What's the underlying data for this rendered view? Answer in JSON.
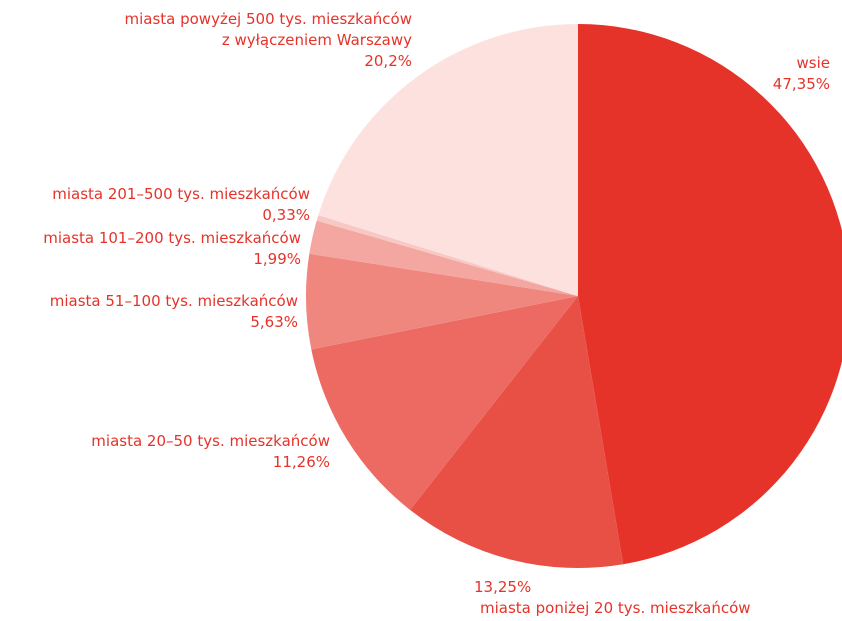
{
  "chart_data": {
    "type": "pie",
    "categories": [
      "wsie",
      "miasta poniżej 20 tys. mieszkańców",
      "miasta 20–50 tys. mieszkańców",
      "miasta 51–100 tys. mieszkańców",
      "miasta 101–200 tys. mieszkańców",
      "miasta 201–500 tys. mieszkańców",
      "miasta powyżej 500 tys. mieszkańców\nz wyłączeniem Warszawy"
    ],
    "values": [
      47.35,
      13.25,
      11.26,
      5.63,
      1.99,
      0.33,
      20.2
    ],
    "value_labels": [
      "47,35%",
      "13,25%",
      "11,26%",
      "5,63%",
      "1,99%",
      "0,33%",
      "20,2%"
    ],
    "colors": [
      "#e5332a",
      "#e84f45",
      "#ec6a62",
      "#f0877f",
      "#f4a6a1",
      "#f8c8c4",
      "#fce1df"
    ]
  }
}
